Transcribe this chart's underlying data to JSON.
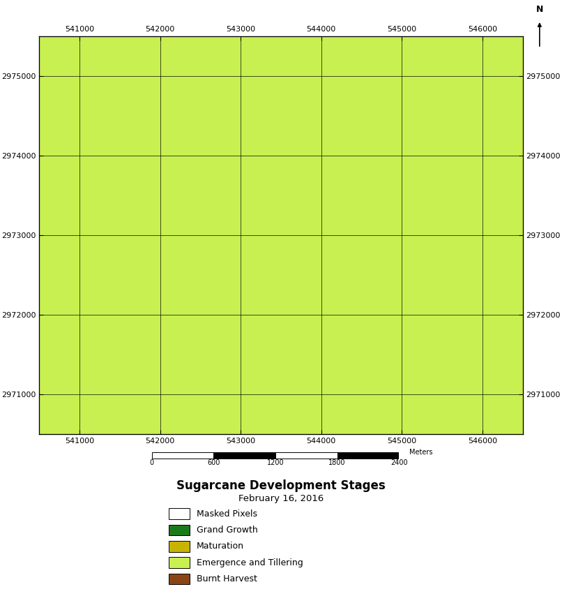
{
  "title": "Sugarcane Development Stages",
  "subtitle": "February 16, 2016",
  "xlim": [
    540500,
    546500
  ],
  "ylim": [
    2970500,
    2975500
  ],
  "xticks": [
    541000,
    542000,
    543000,
    544000,
    545000,
    546000
  ],
  "yticks": [
    2971000,
    2972000,
    2973000,
    2974000,
    2975000
  ],
  "legend_labels": [
    "Masked Pixels",
    "Grand Growth",
    "Maturation",
    "Emergence and Tillering",
    "Burnt Harvest"
  ],
  "legend_colors": [
    "#FFFFFF",
    "#1a7a1a",
    "#c8b400",
    "#c8f050",
    "#8B4513"
  ],
  "scale_bar_label": "Meters",
  "background_color": "#FFFFFF",
  "colors": {
    "masked": "#FFFFFF",
    "grand": "#1a7a1a",
    "matur": "#c8b400",
    "emerg": "#c8f050",
    "burnt": "#8B4513"
  }
}
